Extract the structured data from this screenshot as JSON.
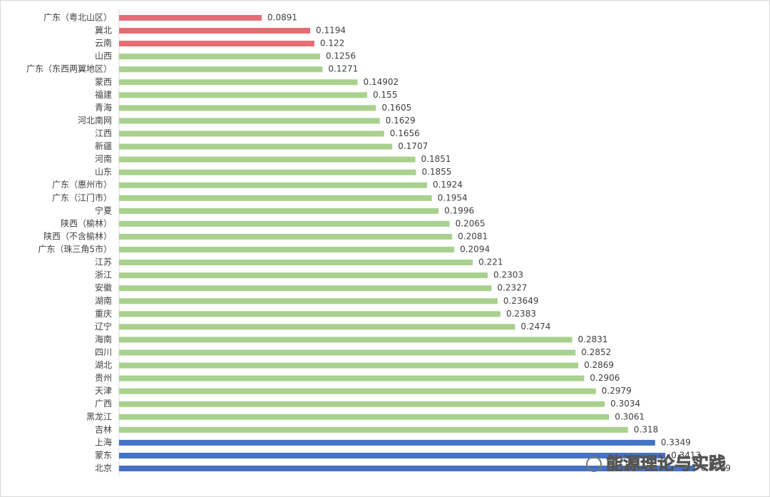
{
  "chart_data": {
    "type": "barh",
    "categories": [
      "广东（粤北山区）",
      "冀北",
      "云南",
      "山西",
      "广东（东西两翼地区）",
      "蒙西",
      "福建",
      "青海",
      "河北南网",
      "江西",
      "新疆",
      "河南",
      "山东",
      "广东（惠州市）",
      "广东（江门市）",
      "宁夏",
      "陕西（榆林）",
      "陕西（不含榆林）",
      "广东（珠三角5市）",
      "江苏",
      "浙江",
      "安徽",
      "湖南",
      "重庆",
      "辽宁",
      "海南",
      "四川",
      "湖北",
      "贵州",
      "天津",
      "广西",
      "黑龙江",
      "吉林",
      "上海",
      "蒙东",
      "北京"
    ],
    "values": [
      0.0891,
      0.1194,
      0.122,
      0.1256,
      0.1271,
      0.14902,
      0.155,
      0.1605,
      0.1629,
      0.1656,
      0.1707,
      0.1851,
      0.1855,
      0.1924,
      0.1954,
      0.1996,
      0.2065,
      0.2081,
      0.2094,
      0.221,
      0.2303,
      0.2327,
      0.23649,
      0.2383,
      0.2474,
      0.2831,
      0.2852,
      0.2869,
      0.2906,
      0.2979,
      0.3034,
      0.3061,
      0.318,
      0.3349,
      0.3413,
      0.3599
    ],
    "colors": [
      "#e46c74",
      "#e46c74",
      "#e46c74",
      "#a9d18e",
      "#a9d18e",
      "#a9d18e",
      "#a9d18e",
      "#a9d18e",
      "#a9d18e",
      "#a9d18e",
      "#a9d18e",
      "#a9d18e",
      "#a9d18e",
      "#a9d18e",
      "#a9d18e",
      "#a9d18e",
      "#a9d18e",
      "#a9d18e",
      "#a9d18e",
      "#a9d18e",
      "#a9d18e",
      "#a9d18e",
      "#a9d18e",
      "#a9d18e",
      "#a9d18e",
      "#a9d18e",
      "#a9d18e",
      "#a9d18e",
      "#a9d18e",
      "#a9d18e",
      "#a9d18e",
      "#a9d18e",
      "#a9d18e",
      "#4472c4",
      "#4472c4",
      "#4472c4"
    ],
    "xlim": [
      0,
      0.4
    ],
    "watermark": "能源理论与实践"
  }
}
